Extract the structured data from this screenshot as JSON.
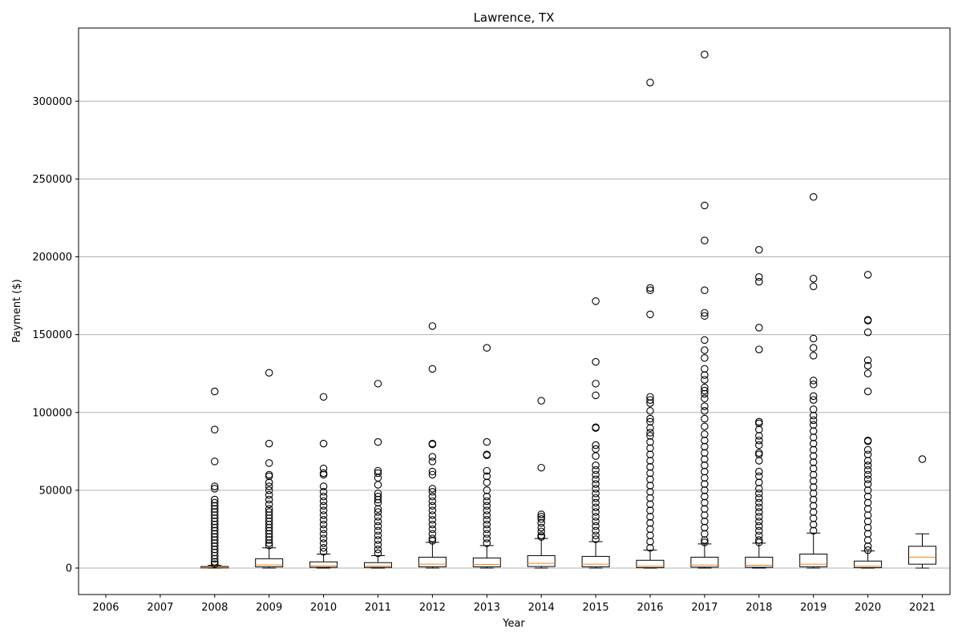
{
  "chart_data": {
    "type": "boxplot",
    "title": "Lawrence, TX",
    "xlabel": "Year",
    "ylabel": "Payment ($)",
    "categories": [
      "2006",
      "2007",
      "2008",
      "2009",
      "2010",
      "2011",
      "2012",
      "2013",
      "2014",
      "2015",
      "2016",
      "2017",
      "2018",
      "2019",
      "2020",
      "2021"
    ],
    "ylim": [
      -17000,
      347000
    ],
    "yticks": [
      0,
      50000,
      100000,
      150000,
      200000,
      250000,
      300000
    ],
    "ytick_labels": [
      "0",
      "50000",
      "100000",
      "150000",
      "200000",
      "250000",
      "300000"
    ],
    "grid": "y",
    "colors": {
      "box": "#000000",
      "median": "#ff7f0e",
      "grid": "#b0b0b0"
    },
    "boxes": [
      {
        "year": "2006",
        "empty": true
      },
      {
        "year": "2007",
        "empty": true
      },
      {
        "year": "2008",
        "whisker_low": 0,
        "q1": 100,
        "median": 400,
        "q3": 1000,
        "whisker_high": 1800,
        "outliers": [
          113500,
          89000,
          68500,
          52500,
          51000,
          44000,
          42000,
          40000,
          38000,
          36000,
          34000,
          32000,
          30000,
          28000,
          26000,
          24000,
          22000,
          20000,
          18000,
          16000,
          14000,
          12000,
          10000,
          8000,
          6000,
          4000,
          2500
        ]
      },
      {
        "year": "2009",
        "whisker_low": 0,
        "q1": 800,
        "median": 2000,
        "q3": 6000,
        "whisker_high": 13000,
        "outliers": [
          125500,
          80000,
          67500,
          60000,
          59000,
          55000,
          52500,
          50000,
          47000,
          44000,
          41000,
          38000,
          36000,
          34000,
          32000,
          30000,
          28000,
          26000,
          24000,
          22000,
          20000,
          18000,
          16000,
          14500
        ]
      },
      {
        "year": "2010",
        "whisker_low": 0,
        "q1": 500,
        "median": 1500,
        "q3": 4000,
        "whisker_high": 9000,
        "outliers": [
          110000,
          80000,
          64000,
          61000,
          60000,
          52500,
          49000,
          46000,
          43000,
          40000,
          37000,
          34000,
          31000,
          28000,
          25000,
          22000,
          19000,
          16000,
          13000,
          10500
        ]
      },
      {
        "year": "2011",
        "whisker_low": 0,
        "q1": 400,
        "median": 1300,
        "q3": 3500,
        "whisker_high": 8000,
        "outliers": [
          118500,
          81000,
          62500,
          61000,
          58000,
          53500,
          48000,
          46000,
          44000,
          42000,
          38000,
          36000,
          33000,
          30000,
          27000,
          24000,
          21000,
          18000,
          15000,
          12000,
          9500
        ]
      },
      {
        "year": "2012",
        "whisker_low": 0,
        "q1": 800,
        "median": 2500,
        "q3": 7000,
        "whisker_high": 16500,
        "outliers": [
          155500,
          128000,
          80000,
          79500,
          71500,
          68500,
          62000,
          60000,
          51000,
          49000,
          46000,
          43000,
          40000,
          37000,
          34000,
          31000,
          28000,
          25000,
          22000,
          19000,
          17500
        ]
      },
      {
        "year": "2013",
        "whisker_low": 0,
        "q1": 800,
        "median": 2300,
        "q3": 6500,
        "whisker_high": 14500,
        "outliers": [
          141500,
          81000,
          73000,
          72500,
          62500,
          59000,
          55000,
          50000,
          46000,
          43000,
          40000,
          37000,
          34000,
          31000,
          28000,
          25000,
          22000,
          19000,
          16000
        ]
      },
      {
        "year": "2014",
        "whisker_low": 0,
        "q1": 1000,
        "median": 3000,
        "q3": 8000,
        "whisker_high": 19000,
        "outliers": [
          107500,
          64500,
          34500,
          33000,
          31500,
          29000,
          26000,
          23500,
          21000,
          20000
        ]
      },
      {
        "year": "2015",
        "whisker_low": 0,
        "q1": 800,
        "median": 2500,
        "q3": 7500,
        "whisker_high": 17000,
        "outliers": [
          171500,
          132500,
          118500,
          111000,
          90500,
          90000,
          79000,
          76500,
          72000,
          66000,
          63000,
          60000,
          57000,
          54000,
          51000,
          48000,
          45000,
          42000,
          39000,
          36000,
          33000,
          30000,
          27000,
          24000,
          21000,
          18500
        ]
      },
      {
        "year": "2016",
        "whisker_low": 0,
        "q1": 300,
        "median": 1200,
        "q3": 5000,
        "whisker_high": 11500,
        "outliers": [
          312000,
          180000,
          178500,
          163000,
          110000,
          108000,
          106000,
          101000,
          96000,
          94000,
          90000,
          87000,
          85000,
          81000,
          77000,
          73000,
          69000,
          65000,
          61000,
          57000,
          53000,
          49000,
          45000,
          41000,
          37000,
          33000,
          29000,
          25000,
          21000,
          17000,
          13000
        ]
      },
      {
        "year": "2017",
        "whisker_low": 0,
        "q1": 600,
        "median": 2000,
        "q3": 7000,
        "whisker_high": 15500,
        "outliers": [
          330000,
          233000,
          210500,
          178500,
          164000,
          162000,
          146500,
          140000,
          135000,
          128000,
          124000,
          121000,
          116000,
          114000,
          112000,
          109000,
          104000,
          101000,
          96000,
          91000,
          86000,
          82000,
          78000,
          74000,
          70000,
          66000,
          62000,
          58000,
          54000,
          50000,
          46000,
          42000,
          38000,
          34000,
          30000,
          26000,
          22000,
          18000,
          16500
        ]
      },
      {
        "year": "2018",
        "whisker_low": 0,
        "q1": 500,
        "median": 1800,
        "q3": 7000,
        "whisker_high": 16000,
        "outliers": [
          204500,
          187000,
          184000,
          154500,
          140500,
          94000,
          93000,
          89000,
          85000,
          82000,
          79000,
          74000,
          73000,
          69000,
          62000,
          59000,
          55000,
          51000,
          48000,
          45000,
          42000,
          39000,
          36000,
          33000,
          30000,
          27000,
          24000,
          21000,
          18000,
          16500
        ]
      },
      {
        "year": "2019",
        "whisker_low": 0,
        "q1": 800,
        "median": 2500,
        "q3": 9000,
        "whisker_high": 22500,
        "outliers": [
          238500,
          186000,
          181000,
          147500,
          141500,
          136500,
          120500,
          118000,
          110500,
          108000,
          102000,
          98000,
          95000,
          92000,
          88000,
          84000,
          80000,
          76000,
          72000,
          68000,
          64000,
          60000,
          56000,
          52000,
          48000,
          44000,
          40000,
          36000,
          32000,
          28000,
          24000
        ]
      },
      {
        "year": "2020",
        "whisker_low": 0,
        "q1": 300,
        "median": 1200,
        "q3": 4500,
        "whisker_high": 11000,
        "outliers": [
          188500,
          159500,
          159000,
          151500,
          133500,
          130000,
          125000,
          113500,
          82000,
          81500,
          76000,
          73000,
          69000,
          66000,
          63000,
          60000,
          57000,
          54000,
          50000,
          46000,
          42000,
          38000,
          34000,
          30000,
          26000,
          22000,
          18000,
          14000,
          11500
        ]
      },
      {
        "year": "2021",
        "whisker_low": 0,
        "q1": 2500,
        "median": 7000,
        "q3": 14000,
        "whisker_high": 22000,
        "outliers": [
          70000
        ]
      }
    ]
  }
}
